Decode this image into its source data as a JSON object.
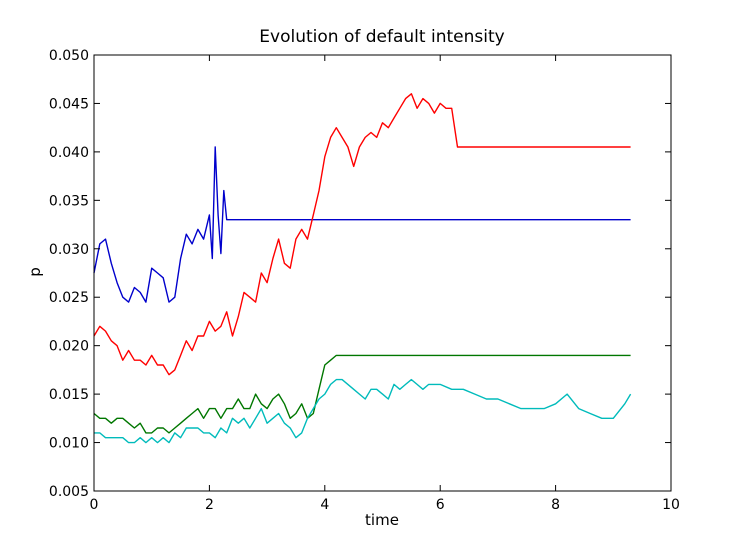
{
  "chart_data": {
    "type": "line",
    "title": "Evolution of default intensity",
    "xlabel": "time",
    "ylabel": "p",
    "xlim": [
      0,
      10
    ],
    "ylim": [
      0.005,
      0.05
    ],
    "xticks": [
      0,
      2,
      4,
      6,
      8,
      10
    ],
    "yticks": [
      0.005,
      0.01,
      0.015,
      0.02,
      0.025,
      0.03,
      0.035,
      0.04,
      0.045,
      0.05
    ],
    "xtick_labels": [
      "0",
      "2",
      "4",
      "6",
      "8",
      "10"
    ],
    "ytick_labels": [
      "0.005",
      "0.010",
      "0.015",
      "0.020",
      "0.025",
      "0.030",
      "0.035",
      "0.040",
      "0.045",
      "0.050"
    ],
    "grid": false,
    "series": [
      {
        "name": "blue",
        "color": "#0000cc",
        "x": [
          0,
          0.1,
          0.2,
          0.3,
          0.4,
          0.5,
          0.6,
          0.7,
          0.8,
          0.9,
          1.0,
          1.1,
          1.2,
          1.3,
          1.4,
          1.5,
          1.6,
          1.7,
          1.8,
          1.9,
          2.0,
          2.05,
          2.1,
          2.15,
          2.2,
          2.25,
          2.3,
          3.0,
          5.0,
          7.0,
          9.3
        ],
        "y": [
          0.0275,
          0.0305,
          0.031,
          0.0285,
          0.0265,
          0.025,
          0.0245,
          0.026,
          0.0255,
          0.0245,
          0.028,
          0.0275,
          0.027,
          0.0245,
          0.025,
          0.029,
          0.0315,
          0.0305,
          0.032,
          0.031,
          0.0335,
          0.029,
          0.0405,
          0.0335,
          0.0295,
          0.036,
          0.033,
          0.033,
          0.033,
          0.033,
          0.033
        ]
      },
      {
        "name": "red",
        "color": "#ff0000",
        "x": [
          0,
          0.1,
          0.2,
          0.3,
          0.4,
          0.5,
          0.6,
          0.7,
          0.8,
          0.9,
          1.0,
          1.1,
          1.2,
          1.3,
          1.4,
          1.5,
          1.6,
          1.7,
          1.8,
          1.9,
          2.0,
          2.1,
          2.2,
          2.3,
          2.4,
          2.5,
          2.6,
          2.7,
          2.8,
          2.9,
          3.0,
          3.1,
          3.2,
          3.3,
          3.4,
          3.5,
          3.6,
          3.7,
          3.8,
          3.9,
          4.0,
          4.1,
          4.2,
          4.3,
          4.4,
          4.5,
          4.6,
          4.7,
          4.8,
          4.9,
          5.0,
          5.1,
          5.2,
          5.3,
          5.4,
          5.5,
          5.6,
          5.7,
          5.8,
          5.9,
          6.0,
          6.1,
          6.2,
          6.3,
          7.0,
          8.0,
          9.3
        ],
        "y": [
          0.021,
          0.022,
          0.0215,
          0.0205,
          0.02,
          0.0185,
          0.0195,
          0.0185,
          0.0185,
          0.018,
          0.019,
          0.018,
          0.018,
          0.017,
          0.0175,
          0.019,
          0.0205,
          0.0195,
          0.021,
          0.021,
          0.0225,
          0.0215,
          0.022,
          0.0235,
          0.021,
          0.023,
          0.0255,
          0.025,
          0.0245,
          0.0275,
          0.0265,
          0.029,
          0.031,
          0.0285,
          0.028,
          0.031,
          0.032,
          0.031,
          0.0335,
          0.036,
          0.0395,
          0.0415,
          0.0425,
          0.0415,
          0.0405,
          0.0385,
          0.0405,
          0.0415,
          0.042,
          0.0415,
          0.043,
          0.0425,
          0.0435,
          0.0445,
          0.0455,
          0.046,
          0.0445,
          0.0455,
          0.045,
          0.044,
          0.045,
          0.0445,
          0.0445,
          0.0405,
          0.0405,
          0.0405,
          0.0405
        ]
      },
      {
        "name": "green",
        "color": "#007700",
        "x": [
          0,
          0.1,
          0.2,
          0.3,
          0.4,
          0.5,
          0.6,
          0.7,
          0.8,
          0.9,
          1.0,
          1.1,
          1.2,
          1.3,
          1.4,
          1.5,
          1.6,
          1.7,
          1.8,
          1.9,
          2.0,
          2.1,
          2.2,
          2.3,
          2.4,
          2.5,
          2.6,
          2.7,
          2.8,
          2.9,
          3.0,
          3.1,
          3.2,
          3.3,
          3.4,
          3.5,
          3.6,
          3.7,
          3.8,
          3.9,
          4.0,
          4.1,
          4.2,
          4.3,
          5.0,
          7.0,
          9.3
        ],
        "y": [
          0.013,
          0.0125,
          0.0125,
          0.012,
          0.0125,
          0.0125,
          0.012,
          0.0115,
          0.012,
          0.011,
          0.011,
          0.0115,
          0.0115,
          0.011,
          0.0115,
          0.012,
          0.0125,
          0.013,
          0.0135,
          0.0125,
          0.0135,
          0.0135,
          0.0125,
          0.0135,
          0.0135,
          0.0145,
          0.0135,
          0.0135,
          0.015,
          0.014,
          0.0135,
          0.0145,
          0.015,
          0.014,
          0.0125,
          0.013,
          0.014,
          0.0125,
          0.013,
          0.0155,
          0.018,
          0.0185,
          0.019,
          0.019,
          0.019,
          0.019,
          0.019
        ]
      },
      {
        "name": "cyan",
        "color": "#00bbbb",
        "x": [
          0,
          0.1,
          0.2,
          0.3,
          0.4,
          0.5,
          0.6,
          0.7,
          0.8,
          0.9,
          1.0,
          1.1,
          1.2,
          1.3,
          1.4,
          1.5,
          1.6,
          1.7,
          1.8,
          1.9,
          2.0,
          2.1,
          2.2,
          2.3,
          2.4,
          2.5,
          2.6,
          2.7,
          2.8,
          2.9,
          3.0,
          3.1,
          3.2,
          3.3,
          3.4,
          3.5,
          3.6,
          3.7,
          3.8,
          3.9,
          4.0,
          4.1,
          4.2,
          4.3,
          4.4,
          4.5,
          4.6,
          4.7,
          4.8,
          4.9,
          5.0,
          5.1,
          5.2,
          5.3,
          5.4,
          5.5,
          5.6,
          5.7,
          5.8,
          5.9,
          6.0,
          6.2,
          6.4,
          6.6,
          6.8,
          7.0,
          7.2,
          7.4,
          7.6,
          7.8,
          8.0,
          8.2,
          8.4,
          8.6,
          8.8,
          9.0,
          9.2,
          9.3
        ],
        "y": [
          0.011,
          0.011,
          0.0105,
          0.0105,
          0.0105,
          0.0105,
          0.01,
          0.01,
          0.0105,
          0.01,
          0.0105,
          0.01,
          0.0105,
          0.01,
          0.011,
          0.0105,
          0.0115,
          0.0115,
          0.0115,
          0.011,
          0.011,
          0.0105,
          0.0115,
          0.011,
          0.0125,
          0.012,
          0.0125,
          0.0115,
          0.0125,
          0.0135,
          0.012,
          0.0125,
          0.013,
          0.012,
          0.0115,
          0.0105,
          0.011,
          0.0125,
          0.0135,
          0.0145,
          0.015,
          0.016,
          0.0165,
          0.0165,
          0.016,
          0.0155,
          0.015,
          0.0145,
          0.0155,
          0.0155,
          0.015,
          0.0145,
          0.016,
          0.0155,
          0.016,
          0.0165,
          0.016,
          0.0155,
          0.016,
          0.016,
          0.016,
          0.0155,
          0.0155,
          0.015,
          0.0145,
          0.0145,
          0.014,
          0.0135,
          0.0135,
          0.0135,
          0.014,
          0.015,
          0.0135,
          0.013,
          0.0125,
          0.0125,
          0.014,
          0.015
        ]
      }
    ]
  }
}
